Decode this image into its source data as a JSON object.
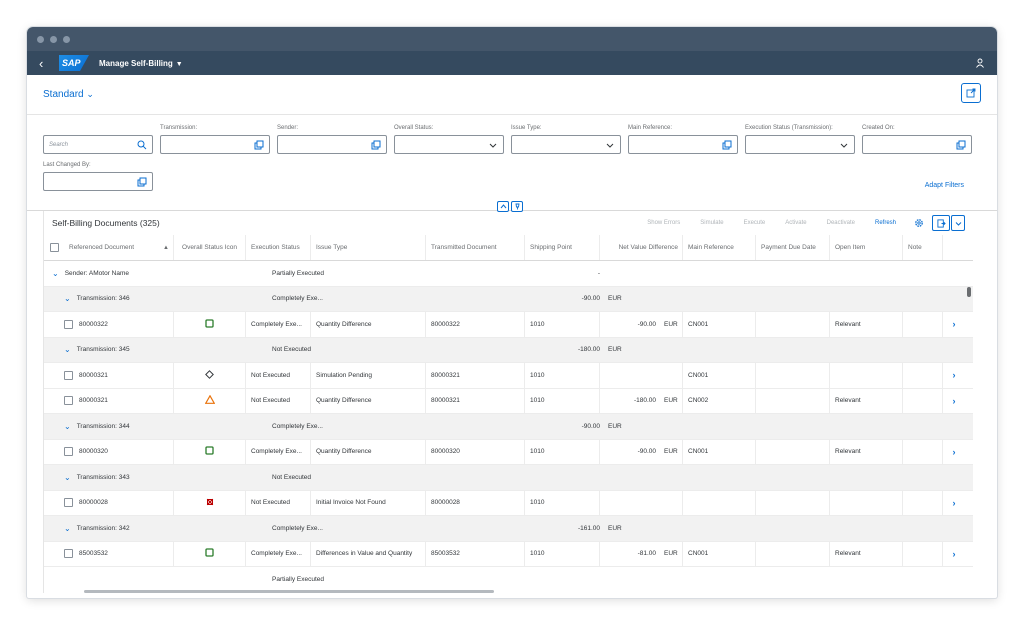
{
  "app": {
    "title": "Manage Self-Billing"
  },
  "variant": {
    "label": "Standard"
  },
  "filters": {
    "search_placeholder": "Search",
    "fields": [
      {
        "label": "Transmission:",
        "kind": "valuehelp"
      },
      {
        "label": "Sender:",
        "kind": "valuehelp"
      },
      {
        "label": "Overall Status:",
        "kind": "dropdown"
      },
      {
        "label": "Issue Type:",
        "kind": "dropdown"
      },
      {
        "label": "Main Reference:",
        "kind": "valuehelp"
      },
      {
        "label": "Execution Status (Transmission):",
        "kind": "dropdown"
      },
      {
        "label": "Created On:",
        "kind": "valuehelp"
      },
      {
        "label": "Last Changed By:",
        "kind": "valuehelp"
      }
    ],
    "adapt_label": "Adapt Filters"
  },
  "table": {
    "title": "Self-Billing Documents (325)",
    "actions": [
      "Show Errors",
      "Simulate",
      "Execute",
      "Activate",
      "Deactivate",
      "Refresh"
    ],
    "columns": [
      "Referenced Document",
      "Overall Status Icon",
      "Execution Status",
      "Issue Type",
      "Transmitted Document",
      "Shipping Point",
      "Net Value Difference",
      "Main Reference",
      "Payment Due Date",
      "Open Item",
      "Note"
    ],
    "sender_group": {
      "label": "Sender: AMotor Name",
      "status": "Partially Executed",
      "value": "-"
    },
    "rows": [
      {
        "type": "group",
        "label": "Transmission: 346",
        "status": "Completely Exe...",
        "value": "-90.00",
        "currency": "EUR"
      },
      {
        "type": "item",
        "ref": "80000322",
        "icon": "success",
        "exec": "Completely Exe...",
        "issue": "Quantity Difference",
        "tdoc": "80000322",
        "ship": "1010",
        "value": "-90.00",
        "currency": "EUR",
        "mainref": "CN001",
        "due": "",
        "open": "Relevant",
        "note": ""
      },
      {
        "type": "group",
        "label": "Transmission: 345",
        "status": "Not Executed",
        "value": "-180.00",
        "currency": "EUR"
      },
      {
        "type": "item",
        "ref": "80000321",
        "icon": "neutral",
        "exec": "Not Executed",
        "issue": "Simulation Pending",
        "tdoc": "80000321",
        "ship": "1010",
        "value": "",
        "currency": "",
        "mainref": "CN001",
        "due": "",
        "open": "",
        "note": ""
      },
      {
        "type": "item",
        "ref": "80000321",
        "icon": "warning",
        "exec": "Not Executed",
        "issue": "Quantity Difference",
        "tdoc": "80000321",
        "ship": "1010",
        "value": "-180.00",
        "currency": "EUR",
        "mainref": "CN002",
        "due": "",
        "open": "Relevant",
        "note": ""
      },
      {
        "type": "group",
        "label": "Transmission: 344",
        "status": "Completely Exe...",
        "value": "-90.00",
        "currency": "EUR"
      },
      {
        "type": "item",
        "ref": "80000320",
        "icon": "success",
        "exec": "Completely Exe...",
        "issue": "Quantity Difference",
        "tdoc": "80000320",
        "ship": "1010",
        "value": "-90.00",
        "currency": "EUR",
        "mainref": "CN001",
        "due": "",
        "open": "Relevant",
        "note": ""
      },
      {
        "type": "group",
        "label": "Transmission: 343",
        "status": "Not Executed",
        "value": "",
        "currency": ""
      },
      {
        "type": "item",
        "ref": "80000028",
        "icon": "error",
        "exec": "Not Executed",
        "issue": "Initial Invoice Not Found",
        "tdoc": "80000028",
        "ship": "1010",
        "value": "",
        "currency": "",
        "mainref": "",
        "due": "",
        "open": "",
        "note": ""
      },
      {
        "type": "group",
        "label": "Transmission: 342",
        "status": "Completely Exe...",
        "value": "-161.00",
        "currency": "EUR"
      },
      {
        "type": "item",
        "ref": "85003532",
        "icon": "success",
        "exec": "Completely Exe...",
        "issue": "Differences in Value and Quantity",
        "tdoc": "85003532",
        "ship": "1010",
        "value": "-81.00",
        "currency": "EUR",
        "mainref": "CN001",
        "due": "",
        "open": "Relevant",
        "note": ""
      }
    ],
    "footer_status": "Partially Executed"
  },
  "colors": {
    "shell": "#354a5f",
    "accent": "#0a6ed1",
    "success": "#2b7c2b",
    "warning": "#e9730c",
    "error": "#bb0000"
  }
}
